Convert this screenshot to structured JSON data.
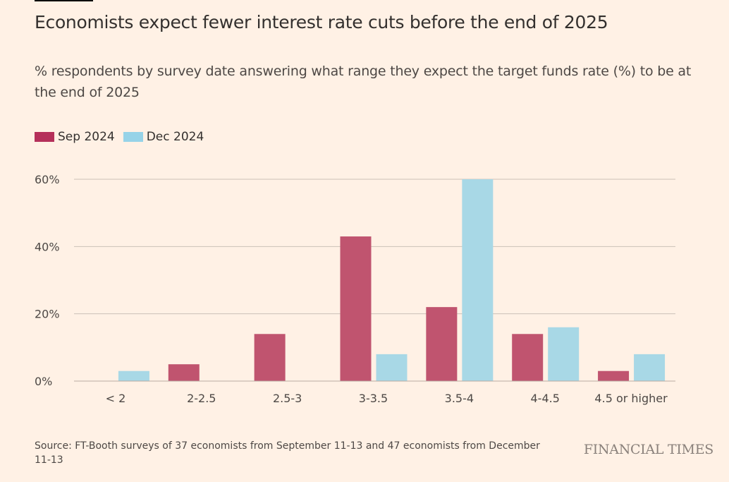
{
  "title": "Economists expect fewer interest rate cuts before the end of 2025",
  "subtitle": "% respondents by survey date answering what range they expect the target funds rate (%) to be at the end of 2025",
  "source": "Source: FT-Booth surveys of 37 economists from September 11-13 and 47 economists from December 11-13",
  "logo": "FINANCIAL TIMES",
  "colors": {
    "background": "#fff1e5",
    "sep": "#c0546f",
    "dec": "#a8d8e6",
    "sep_legend": "#b5305a",
    "dec_legend": "#96d3e8"
  },
  "chart_data": {
    "type": "bar",
    "title": "Economists expect fewer interest rate cuts before the end of 2025",
    "categories": [
      "< 2",
      "2-2.5",
      "2.5-3",
      "3-3.5",
      "3.5-4",
      "4-4.5",
      "4.5 or higher"
    ],
    "series": [
      {
        "name": "Sep 2024",
        "values": [
          0,
          5,
          14,
          43,
          22,
          14,
          3
        ]
      },
      {
        "name": "Dec 2024",
        "values": [
          3,
          0,
          0,
          8,
          60,
          16,
          8
        ]
      }
    ],
    "ylim": [
      0,
      60
    ],
    "yticks": [
      0,
      20,
      40,
      60
    ],
    "ytick_labels": [
      "0%",
      "20%",
      "40%",
      "60%"
    ],
    "grid": true,
    "legend": "top-left"
  }
}
